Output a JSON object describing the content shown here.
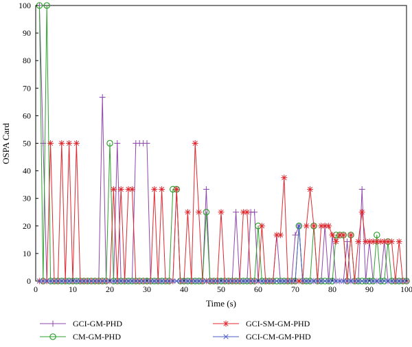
{
  "chart_data": {
    "type": "line",
    "title": "",
    "xlabel": "Time (s)",
    "ylabel": "OSPA Card",
    "xlim": [
      0,
      100
    ],
    "ylim": [
      0,
      100
    ],
    "xticks": [
      0,
      10,
      20,
      30,
      40,
      50,
      60,
      70,
      80,
      90,
      100
    ],
    "yticks": [
      0,
      10,
      20,
      30,
      40,
      50,
      60,
      70,
      80,
      90,
      100
    ],
    "grid": false,
    "legend_position": "bottom",
    "series": [
      {
        "name": "GCI-GM-PHD",
        "color": "#8e44ad",
        "marker": "plus",
        "x": [
          1,
          2,
          3,
          4,
          5,
          6,
          7,
          8,
          9,
          10,
          11,
          12,
          13,
          14,
          15,
          16,
          17,
          18,
          19,
          20,
          21,
          22,
          23,
          24,
          25,
          26,
          27,
          28,
          29,
          30,
          31,
          32,
          33,
          34,
          35,
          36,
          37,
          38,
          39,
          40,
          41,
          42,
          43,
          44,
          45,
          46,
          47,
          48,
          49,
          50,
          51,
          52,
          53,
          54,
          55,
          56,
          57,
          58,
          59,
          60,
          61,
          62,
          63,
          64,
          65,
          66,
          67,
          68,
          69,
          70,
          71,
          72,
          73,
          74,
          75,
          76,
          77,
          78,
          79,
          80,
          81,
          82,
          83,
          84,
          85,
          86,
          87,
          88,
          89,
          90,
          91,
          92,
          93,
          94,
          95,
          96,
          97,
          98,
          99,
          100
        ],
        "y": [
          100,
          50,
          0,
          0,
          0,
          0,
          0,
          0,
          0,
          0,
          0,
          0,
          0,
          0,
          0,
          0,
          0,
          66.7,
          0,
          0,
          0,
          50,
          0,
          0,
          0,
          0,
          50,
          50,
          50,
          50,
          0,
          0,
          0,
          0,
          0,
          0,
          0,
          33.3,
          0,
          0,
          0,
          0,
          0,
          0,
          0,
          33.3,
          0,
          0,
          0,
          0,
          0,
          0,
          0,
          25,
          0,
          0,
          0,
          25,
          25,
          0,
          0,
          0,
          0,
          0,
          16.7,
          0,
          0,
          0,
          0,
          16.7,
          20,
          0,
          0,
          0,
          0,
          0,
          0,
          20,
          0,
          16.7,
          0,
          0,
          0,
          14.3,
          0,
          0,
          0,
          33.3,
          0,
          14.3,
          0,
          0,
          0,
          14.3,
          0,
          0,
          0,
          0,
          0,
          0
        ]
      },
      {
        "name": "CM-GM-PHD",
        "color": "#2ca02c",
        "marker": "circle",
        "x": [
          1,
          2,
          3,
          4,
          5,
          6,
          7,
          8,
          9,
          10,
          11,
          12,
          13,
          14,
          15,
          16,
          17,
          18,
          19,
          20,
          21,
          22,
          23,
          24,
          25,
          26,
          27,
          28,
          29,
          30,
          31,
          32,
          33,
          34,
          35,
          36,
          37,
          38,
          39,
          40,
          41,
          42,
          43,
          44,
          45,
          46,
          47,
          48,
          49,
          50,
          51,
          52,
          53,
          54,
          55,
          56,
          57,
          58,
          59,
          60,
          61,
          62,
          63,
          64,
          65,
          66,
          67,
          68,
          69,
          70,
          71,
          72,
          73,
          74,
          75,
          76,
          77,
          78,
          79,
          80,
          81,
          82,
          83,
          84,
          85,
          86,
          87,
          88,
          89,
          90,
          91,
          92,
          93,
          94,
          95,
          96,
          97,
          98,
          99,
          100
        ],
        "y": [
          100,
          0,
          100,
          0,
          0,
          0,
          0,
          0,
          0,
          0,
          0,
          0,
          0,
          0,
          0,
          0,
          0,
          0,
          0,
          50,
          0,
          0,
          0,
          0,
          0,
          0,
          0,
          0,
          0,
          0,
          0,
          0,
          0,
          0,
          0,
          0,
          33.3,
          33.3,
          0,
          0,
          0,
          0,
          0,
          0,
          0,
          25,
          0,
          0,
          0,
          0,
          0,
          0,
          0,
          0,
          0,
          0,
          0,
          0,
          0,
          20,
          0,
          0,
          0,
          0,
          0,
          0,
          0,
          0,
          0,
          0,
          20,
          0,
          0,
          0,
          20,
          0,
          0,
          0,
          0,
          0,
          16.7,
          16.7,
          16.7,
          0,
          16.7,
          0,
          0,
          0,
          0,
          0,
          0,
          16.7,
          0,
          0,
          14.3,
          0,
          0,
          0,
          0,
          0
        ]
      },
      {
        "name": "GCI-SM-GM-PHD",
        "color": "#e0262d",
        "marker": "star",
        "x": [
          1,
          2,
          3,
          4,
          5,
          6,
          7,
          8,
          9,
          10,
          11,
          12,
          13,
          14,
          15,
          16,
          17,
          18,
          19,
          20,
          21,
          22,
          23,
          24,
          25,
          26,
          27,
          28,
          29,
          30,
          31,
          32,
          33,
          34,
          35,
          36,
          37,
          38,
          39,
          40,
          41,
          42,
          43,
          44,
          45,
          46,
          47,
          48,
          49,
          50,
          51,
          52,
          53,
          54,
          55,
          56,
          57,
          58,
          59,
          60,
          61,
          62,
          63,
          64,
          65,
          66,
          67,
          68,
          69,
          70,
          71,
          72,
          73,
          74,
          75,
          76,
          77,
          78,
          79,
          80,
          81,
          82,
          83,
          84,
          85,
          86,
          87,
          88,
          89,
          90,
          91,
          92,
          93,
          94,
          95,
          96,
          97,
          98,
          99,
          100
        ],
        "y": [
          0,
          0,
          0,
          50,
          0,
          0,
          50,
          0,
          50,
          0,
          50,
          0,
          0,
          0,
          0,
          0,
          0,
          0,
          0,
          0,
          33.3,
          0,
          33.3,
          0,
          33.3,
          33.3,
          0,
          0,
          0,
          0,
          0,
          33.3,
          0,
          33.3,
          0,
          0,
          0,
          33.3,
          0,
          0,
          25,
          0,
          50,
          25,
          0,
          0,
          0,
          0,
          0,
          25,
          0,
          0,
          0,
          0,
          0,
          25,
          25,
          0,
          0,
          0,
          20,
          0,
          0,
          0,
          16.7,
          16.7,
          37.5,
          0,
          0,
          0,
          0,
          0,
          20,
          33.3,
          20,
          0,
          20,
          20,
          20,
          16.7,
          14.3,
          16.7,
          16.7,
          0,
          16.7,
          0,
          14.3,
          25,
          14.3,
          14.3,
          14.3,
          14.3,
          14.3,
          14.3,
          14.3,
          14.3,
          0,
          14.3,
          0,
          0
        ]
      },
      {
        "name": "GCI-CM-GM-PHD",
        "color": "#4a5bc4",
        "marker": "cross",
        "x": [
          1,
          2,
          3,
          4,
          5,
          6,
          7,
          8,
          9,
          10,
          11,
          12,
          13,
          14,
          15,
          16,
          17,
          18,
          19,
          20,
          21,
          22,
          23,
          24,
          25,
          26,
          27,
          28,
          29,
          30,
          31,
          32,
          33,
          34,
          35,
          36,
          37,
          38,
          39,
          40,
          41,
          42,
          43,
          44,
          45,
          46,
          47,
          48,
          49,
          50,
          51,
          52,
          53,
          54,
          55,
          56,
          57,
          58,
          59,
          60,
          61,
          62,
          63,
          64,
          65,
          66,
          67,
          68,
          69,
          70,
          71,
          72,
          73,
          74,
          75,
          76,
          77,
          78,
          79,
          80,
          81,
          82,
          83,
          84,
          85,
          86,
          87,
          88,
          89,
          90,
          91,
          92,
          93,
          94,
          95,
          96,
          97,
          98,
          99,
          100
        ],
        "y": [
          0,
          0,
          0,
          0,
          0,
          0,
          0,
          0,
          0,
          0,
          0,
          0,
          0,
          0,
          0,
          0,
          0,
          0,
          0,
          0,
          0,
          0,
          0,
          0,
          0,
          0,
          0,
          0,
          0,
          0,
          0,
          0,
          0,
          0,
          0,
          0,
          0,
          0,
          0,
          0,
          0,
          0,
          0,
          0,
          0,
          0,
          0,
          0,
          0,
          0,
          0,
          0,
          0,
          0,
          0,
          0,
          0,
          0,
          0,
          0,
          0,
          0,
          0,
          0,
          0,
          0,
          0,
          0,
          0,
          0,
          20,
          0,
          0,
          0,
          0,
          0,
          0,
          0,
          0,
          0,
          0,
          0,
          0,
          0,
          0,
          0,
          0,
          0,
          0,
          0,
          0,
          0,
          0,
          0,
          0,
          0,
          0,
          0,
          0,
          0
        ]
      }
    ]
  }
}
